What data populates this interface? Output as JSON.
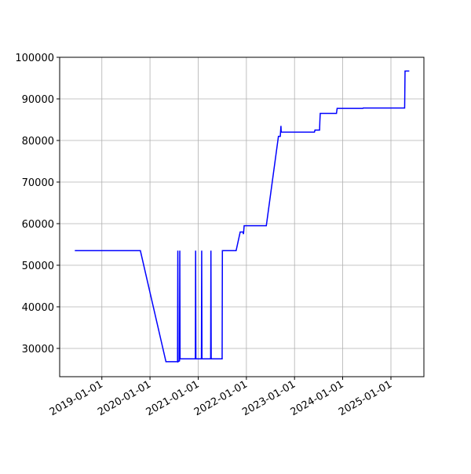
{
  "chart_data": {
    "type": "line",
    "x": [
      "2018-06-10",
      "2019-10-20",
      "2020-05-01",
      "2020-07-28",
      "2020-07-30",
      "2020-08-01",
      "2020-08-12",
      "2020-08-14",
      "2020-08-16",
      "2020-12-10",
      "2020-12-12",
      "2020-12-14",
      "2021-01-25",
      "2021-01-27",
      "2021-01-29",
      "2021-04-05",
      "2021-04-07",
      "2021-04-09",
      "2021-07-01",
      "2021-07-03",
      "2021-10-15",
      "2021-11-15",
      "2021-12-05",
      "2021-12-10",
      "2021-12-15",
      "2022-06-01",
      "2022-09-01",
      "2022-09-15",
      "2022-09-20",
      "2022-09-22",
      "2023-06-01",
      "2023-06-05",
      "2023-07-10",
      "2023-07-12",
      "2023-07-15",
      "2023-11-15",
      "2023-11-20",
      "2024-06-01",
      "2024-06-05",
      "2025-04-15",
      "2025-04-18",
      "2025-05-20"
    ],
    "values": [
      53500,
      53500,
      26800,
      26800,
      53500,
      26800,
      27000,
      53500,
      27500,
      27500,
      53500,
      27500,
      27500,
      53500,
      27500,
      27500,
      53500,
      27500,
      27500,
      53500,
      53500,
      58000,
      58000,
      57500,
      59500,
      59500,
      81000,
      81000,
      83500,
      82000,
      82000,
      82500,
      82500,
      84500,
      86500,
      86500,
      87700,
      87700,
      87800,
      87800,
      96700,
      96700
    ],
    "color": "#0000ff",
    "xlim": [
      "2018-02-15",
      "2025-09-08"
    ],
    "xticks": [
      "2019-01-01",
      "2020-01-01",
      "2021-01-01",
      "2022-01-01",
      "2023-01-01",
      "2024-01-01",
      "2025-01-01"
    ],
    "ylim": [
      23200,
      100000
    ],
    "yticks": [
      30000,
      40000,
      50000,
      60000,
      70000,
      80000,
      90000,
      100000
    ],
    "grid": true
  }
}
